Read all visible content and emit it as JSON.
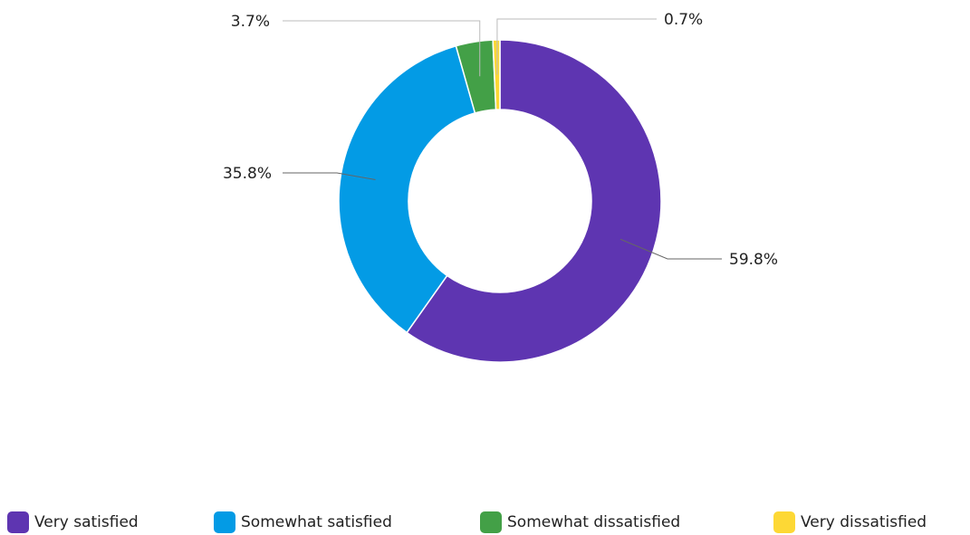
{
  "chart_data": {
    "type": "pie",
    "variant": "donut",
    "title": "",
    "categories": [
      "Very satisfied",
      "Somewhat satisfied",
      "Somewhat dissatisfied",
      "Very dissatisfied"
    ],
    "values": [
      59.8,
      35.8,
      3.7,
      0.7
    ],
    "data_labels": [
      "59.8%",
      "35.8%",
      "3.7%",
      "0.7%"
    ],
    "colors": [
      "#5e35b1",
      "#039be5",
      "#43a047",
      "#fdd835"
    ],
    "legend_position": "bottom",
    "start": "top, clockwise"
  }
}
